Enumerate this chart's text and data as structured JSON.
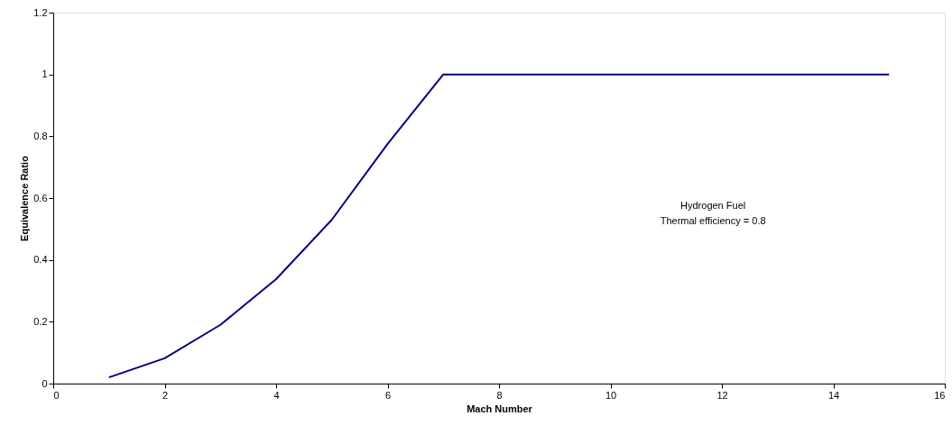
{
  "chart_data": {
    "type": "line",
    "xlabel": "Mach Number",
    "ylabel": "Equivalence Ratio",
    "x": [
      1,
      2,
      3,
      4,
      5,
      6,
      7,
      8,
      9,
      10,
      11,
      12,
      13,
      14,
      15
    ],
    "series": [
      {
        "color": "#000080",
        "values": [
          0.02,
          0.082,
          0.19,
          0.338,
          0.53,
          0.775,
          1.0,
          1.0,
          1.0,
          1.0,
          1.0,
          1.0,
          1.0,
          1.0,
          1.0
        ]
      }
    ],
    "xlim": [
      0,
      16
    ],
    "xticks": [
      0,
      2,
      4,
      6,
      8,
      10,
      12,
      14,
      16
    ],
    "ylim": [
      0,
      1.2
    ],
    "yticks": [
      0,
      0.2,
      0.4,
      0.6,
      0.8,
      1,
      1.2
    ],
    "grid": false,
    "marker": "none",
    "line_style": "solid",
    "annotations": [
      "Hydrogen Fuel",
      "Thermal efficiency = 0.8"
    ]
  }
}
